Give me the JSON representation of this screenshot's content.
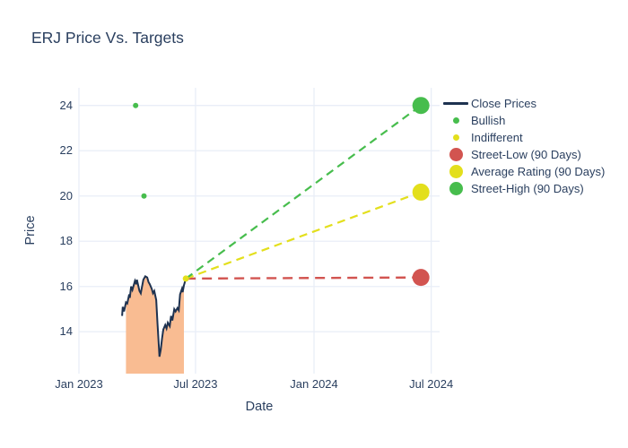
{
  "title": "ERJ Price Vs. Targets",
  "axes": {
    "x": {
      "label": "Date",
      "ticks": [
        {
          "label": "Jan 2023",
          "date": "2023-01-01"
        },
        {
          "label": "Jul 2023",
          "date": "2023-07-01"
        },
        {
          "label": "Jan 2024",
          "date": "2024-01-01"
        },
        {
          "label": "Jul 2024",
          "date": "2024-07-01"
        }
      ]
    },
    "y": {
      "label": "Price",
      "ticks": [
        14,
        16,
        18,
        20,
        22,
        24
      ]
    }
  },
  "colors": {
    "text": "#2a3f5f",
    "grid": "#e9eef7",
    "background": "#ffffff",
    "close_line": "#1e3250",
    "area_fill": "#f9bc92",
    "bullish_green": "#47bd4d",
    "indifferent_yellow": "#e3df1c",
    "street_low_red": "#d25450"
  },
  "legend": {
    "items": [
      {
        "slug": "close-prices",
        "label": "Close Prices",
        "type": "line",
        "color": "#1e3250"
      },
      {
        "slug": "bullish",
        "label": "Bullish",
        "type": "dot-small",
        "color": "#47bd4d"
      },
      {
        "slug": "indifferent",
        "label": "Indifferent",
        "type": "dot-small",
        "color": "#e3df1c"
      },
      {
        "slug": "street-low",
        "label": "Street-Low (90 Days)",
        "type": "dot-large",
        "color": "#d25450"
      },
      {
        "slug": "average-rating",
        "label": "Average Rating (90 Days)",
        "type": "dot-large",
        "color": "#e3df1c"
      },
      {
        "slug": "street-high",
        "label": "Street-High (90 Days)",
        "type": "dot-large",
        "color": "#47bd4d"
      }
    ]
  },
  "chart_data": {
    "type": "line",
    "title": "ERJ Price Vs. Targets",
    "xlabel": "Date",
    "ylabel": "Price",
    "x_range": [
      "2023-01-01",
      "2024-07-14"
    ],
    "y_range": [
      12.15,
      24.78
    ],
    "grid": true,
    "legend_position": "right",
    "series": [
      {
        "name": "Close Prices",
        "type": "line",
        "color": "#1e3250",
        "width": 2,
        "fill_under_range": [
          "2023-03-15",
          "2023-06-13"
        ],
        "fill_color": "#f9bc92",
        "points": [
          {
            "date": "2023-03-09",
            "price": 14.7
          },
          {
            "date": "2023-03-10",
            "price": 15.1
          },
          {
            "date": "2023-03-12",
            "price": 14.9
          },
          {
            "date": "2023-03-15",
            "price": 15.3
          },
          {
            "date": "2023-03-17",
            "price": 15.25
          },
          {
            "date": "2023-03-20",
            "price": 15.65
          },
          {
            "date": "2023-03-21",
            "price": 15.5
          },
          {
            "date": "2023-03-23",
            "price": 16.0
          },
          {
            "date": "2023-03-25",
            "price": 15.85
          },
          {
            "date": "2023-03-29",
            "price": 16.25
          },
          {
            "date": "2023-03-31",
            "price": 16.1
          },
          {
            "date": "2023-04-01",
            "price": 16.3
          },
          {
            "date": "2023-04-05",
            "price": 15.8
          },
          {
            "date": "2023-04-07",
            "price": 15.7
          },
          {
            "date": "2023-04-11",
            "price": 16.3
          },
          {
            "date": "2023-04-14",
            "price": 16.45
          },
          {
            "date": "2023-04-17",
            "price": 16.4
          },
          {
            "date": "2023-04-19",
            "price": 16.2
          },
          {
            "date": "2023-04-21",
            "price": 16.1
          },
          {
            "date": "2023-04-24",
            "price": 15.9
          },
          {
            "date": "2023-04-26",
            "price": 15.7
          },
          {
            "date": "2023-04-28",
            "price": 15.8
          },
          {
            "date": "2023-05-01",
            "price": 15.4
          },
          {
            "date": "2023-05-03",
            "price": 14.35
          },
          {
            "date": "2023-05-05",
            "price": 13.4
          },
          {
            "date": "2023-05-06",
            "price": 12.9
          },
          {
            "date": "2023-05-08",
            "price": 13.2
          },
          {
            "date": "2023-05-10",
            "price": 13.7
          },
          {
            "date": "2023-05-12",
            "price": 14.1
          },
          {
            "date": "2023-05-15",
            "price": 14.3
          },
          {
            "date": "2023-05-17",
            "price": 14.15
          },
          {
            "date": "2023-05-19",
            "price": 14.4
          },
          {
            "date": "2023-05-22",
            "price": 14.25
          },
          {
            "date": "2023-05-24",
            "price": 14.7
          },
          {
            "date": "2023-05-26",
            "price": 14.5
          },
          {
            "date": "2023-05-29",
            "price": 15.0
          },
          {
            "date": "2023-05-31",
            "price": 14.9
          },
          {
            "date": "2023-06-03",
            "price": 15.05
          },
          {
            "date": "2023-06-05",
            "price": 14.95
          },
          {
            "date": "2023-06-07",
            "price": 15.65
          },
          {
            "date": "2023-06-10",
            "price": 15.9
          },
          {
            "date": "2023-06-11",
            "price": 15.75
          },
          {
            "date": "2023-06-13",
            "price": 16.05
          },
          {
            "date": "2023-06-16",
            "price": 16.35
          }
        ]
      },
      {
        "name": "Bullish",
        "type": "scatter",
        "color": "#47bd4d",
        "marker_size": 6,
        "points": [
          {
            "date": "2023-03-30",
            "price": 24.0
          },
          {
            "date": "2023-04-12",
            "price": 20.0
          }
        ]
      },
      {
        "name": "Indifferent",
        "type": "scatter",
        "color": "#e3df1c",
        "marker_size": 7,
        "points": [
          {
            "date": "2023-06-16",
            "price": 16.35
          }
        ]
      },
      {
        "name": "Street-Low (90 Days)",
        "type": "target",
        "color": "#d25450",
        "marker_size": 19,
        "dash": "11 7",
        "line_width": 2.4,
        "from": {
          "date": "2023-06-16",
          "price": 16.35
        },
        "point": {
          "date": "2024-06-15",
          "price": 16.4
        }
      },
      {
        "name": "Average Rating (90 Days)",
        "type": "target",
        "color": "#e3df1c",
        "marker_size": 19,
        "dash": "9 6",
        "line_width": 2.2,
        "from": {
          "date": "2023-06-16",
          "price": 16.35
        },
        "point": {
          "date": "2024-06-15",
          "price": 20.17
        }
      },
      {
        "name": "Street-High (90 Days)",
        "type": "target",
        "color": "#47bd4d",
        "marker_size": 19,
        "dash": "9 6",
        "line_width": 2.2,
        "from": {
          "date": "2023-06-16",
          "price": 16.35
        },
        "point": {
          "date": "2024-06-15",
          "price": 24.0
        }
      }
    ]
  }
}
